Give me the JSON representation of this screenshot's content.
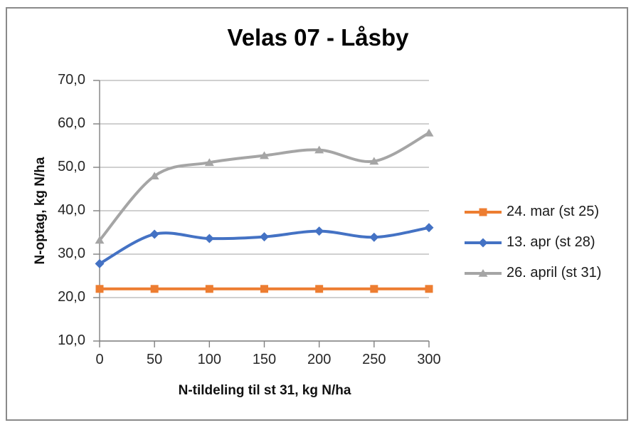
{
  "chart_data": {
    "type": "line",
    "title": "Velas 07 - Låsby",
    "xlabel": "N-tildeling til st 31, kg N/ha",
    "ylabel": "N-optag, kg N/ha",
    "x": [
      0,
      50,
      100,
      150,
      200,
      250,
      300
    ],
    "x_tick_labels": [
      "0",
      "50",
      "100",
      "150",
      "200",
      "250",
      "300"
    ],
    "xlim": [
      0,
      300
    ],
    "y_ticks": [
      10,
      20,
      30,
      40,
      50,
      60,
      70
    ],
    "y_tick_labels": [
      "10,0",
      "20,0",
      "30,0",
      "40,0",
      "50,0",
      "60,0",
      "70,0"
    ],
    "ylim": [
      10,
      70
    ],
    "grid": true,
    "smooth_lines": true,
    "legend_position": "right",
    "gridline_color": "#b5b5b5",
    "axis_color": "#808080",
    "series": [
      {
        "name": "24. mar (st 25)",
        "color": "#ED7D31",
        "marker": "square",
        "values": [
          22,
          22,
          22,
          22,
          22,
          22,
          22
        ]
      },
      {
        "name": "13. apr (st 28)",
        "color": "#4472C4",
        "marker": "diamond",
        "values": [
          27.8,
          34.6,
          33.6,
          34.0,
          35.3,
          33.9,
          36.1
        ]
      },
      {
        "name": "26. april (st 31)",
        "color": "#A5A5A5",
        "marker": "triangle",
        "values": [
          33.2,
          48.0,
          51.1,
          52.7,
          54.0,
          51.4,
          57.9
        ]
      }
    ]
  }
}
